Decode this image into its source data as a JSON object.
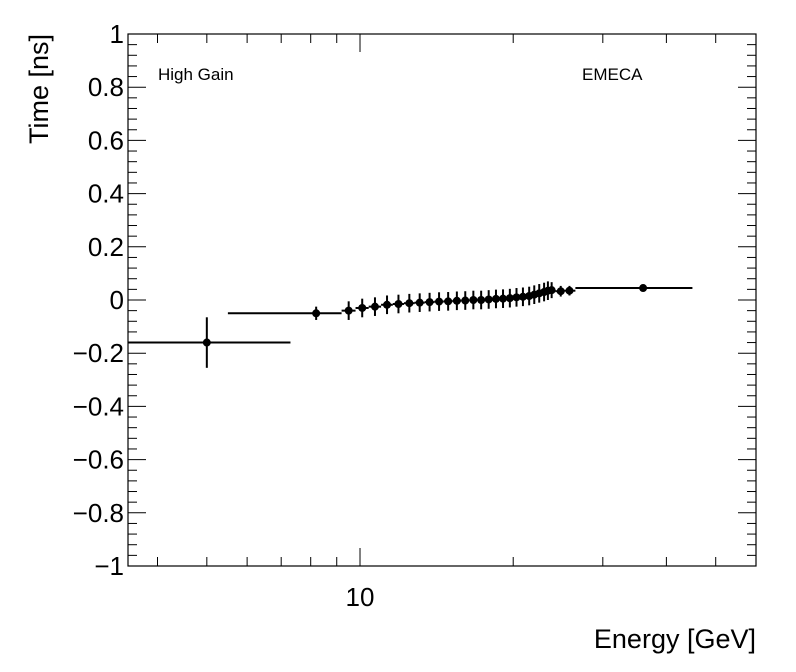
{
  "chart_data": {
    "type": "scatter",
    "title": "",
    "xlabel": "Energy [GeV]",
    "ylabel": "Time [ns]",
    "x_scale": "log",
    "xlim": [
      3.5,
      60
    ],
    "ylim": [
      -1,
      1
    ],
    "y_ticks": [
      "1",
      "0.8",
      "0.6",
      "0.4",
      "0.2",
      "0",
      "−0.2",
      "−0.4",
      "−0.6",
      "−0.8",
      "−1"
    ],
    "x_tick_labels": [
      "10"
    ],
    "grid": false,
    "annotations": {
      "left": "High Gain",
      "right": "EMECA"
    },
    "points": [
      {
        "x": 5.0,
        "y": -0.16,
        "xlo": 3.5,
        "xhi": 7.3,
        "err": 0.095
      },
      {
        "x": 8.2,
        "y": -0.05,
        "xlo": 5.5,
        "xhi": 9.2,
        "err": 0.025
      },
      {
        "x": 9.5,
        "y": -0.04,
        "xlo": 9.2,
        "xhi": 9.8,
        "err": 0.035
      },
      {
        "x": 10.1,
        "y": -0.03,
        "xlo": 9.8,
        "xhi": 10.4,
        "err": 0.035
      },
      {
        "x": 10.7,
        "y": -0.025,
        "xlo": 10.4,
        "xhi": 11.0,
        "err": 0.035
      },
      {
        "x": 11.3,
        "y": -0.018,
        "xlo": 11.0,
        "xhi": 11.6,
        "err": 0.035
      },
      {
        "x": 11.9,
        "y": -0.015,
        "xlo": 11.6,
        "xhi": 12.2,
        "err": 0.035
      },
      {
        "x": 12.5,
        "y": -0.012,
        "xlo": 12.2,
        "xhi": 12.8,
        "err": 0.035
      },
      {
        "x": 13.1,
        "y": -0.01,
        "xlo": 12.8,
        "xhi": 13.4,
        "err": 0.035
      },
      {
        "x": 13.7,
        "y": -0.008,
        "xlo": 13.4,
        "xhi": 14.0,
        "err": 0.035
      },
      {
        "x": 14.3,
        "y": -0.006,
        "xlo": 14.0,
        "xhi": 14.6,
        "err": 0.035
      },
      {
        "x": 14.9,
        "y": -0.005,
        "xlo": 14.6,
        "xhi": 15.2,
        "err": 0.035
      },
      {
        "x": 15.5,
        "y": -0.003,
        "xlo": 15.2,
        "xhi": 15.8,
        "err": 0.035
      },
      {
        "x": 16.1,
        "y": -0.002,
        "xlo": 15.8,
        "xhi": 16.4,
        "err": 0.035
      },
      {
        "x": 16.7,
        "y": 0.0,
        "xlo": 16.4,
        "xhi": 17.0,
        "err": 0.035
      },
      {
        "x": 17.3,
        "y": 0.0,
        "xlo": 17.0,
        "xhi": 17.6,
        "err": 0.035
      },
      {
        "x": 17.9,
        "y": 0.002,
        "xlo": 17.6,
        "xhi": 18.2,
        "err": 0.035
      },
      {
        "x": 18.5,
        "y": 0.004,
        "xlo": 18.2,
        "xhi": 18.8,
        "err": 0.035
      },
      {
        "x": 19.1,
        "y": 0.005,
        "xlo": 18.8,
        "xhi": 19.4,
        "err": 0.035
      },
      {
        "x": 19.7,
        "y": 0.007,
        "xlo": 19.4,
        "xhi": 20.0,
        "err": 0.035
      },
      {
        "x": 20.3,
        "y": 0.01,
        "xlo": 20.0,
        "xhi": 20.6,
        "err": 0.035
      },
      {
        "x": 20.9,
        "y": 0.012,
        "xlo": 20.6,
        "xhi": 21.2,
        "err": 0.035
      },
      {
        "x": 21.5,
        "y": 0.015,
        "xlo": 21.2,
        "xhi": 21.8,
        "err": 0.035
      },
      {
        "x": 22.0,
        "y": 0.02,
        "xlo": 21.8,
        "xhi": 22.3,
        "err": 0.035
      },
      {
        "x": 22.5,
        "y": 0.025,
        "xlo": 22.3,
        "xhi": 22.8,
        "err": 0.035
      },
      {
        "x": 23.0,
        "y": 0.03,
        "xlo": 22.8,
        "xhi": 23.2,
        "err": 0.035
      },
      {
        "x": 23.4,
        "y": 0.035,
        "xlo": 23.2,
        "xhi": 23.6,
        "err": 0.035
      },
      {
        "x": 23.8,
        "y": 0.037,
        "xlo": 23.6,
        "xhi": 24.2,
        "err": 0.03
      },
      {
        "x": 24.8,
        "y": 0.033,
        "xlo": 24.2,
        "xhi": 25.2,
        "err": 0.02
      },
      {
        "x": 25.8,
        "y": 0.035,
        "xlo": 25.2,
        "xhi": 26.5,
        "err": 0.018
      },
      {
        "x": 36.0,
        "y": 0.045,
        "xlo": 26.5,
        "xhi": 45.0,
        "err": 0.008
      }
    ]
  }
}
